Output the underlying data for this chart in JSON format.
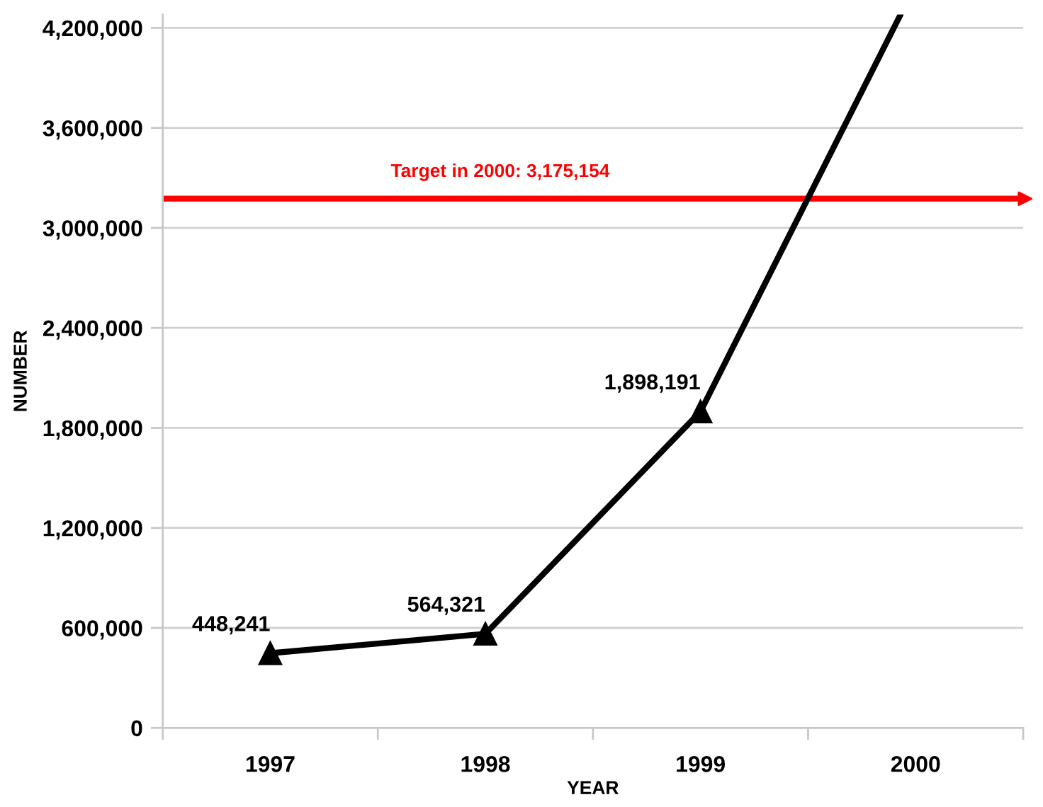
{
  "chart_data": {
    "type": "line",
    "xlabel": "YEAR",
    "ylabel": "NUMBER",
    "xlim": [
      1996.5,
      2000.5
    ],
    "xticks": [
      {
        "value": 1996.5,
        "label": null
      },
      1997,
      {
        "value": 1997.5,
        "label": null
      },
      1998,
      {
        "value": 1998.5,
        "label": null
      },
      1999,
      {
        "value": 1999.5,
        "label": null
      },
      2000,
      {
        "value": 2000.5,
        "label": null
      }
    ],
    "ylim": [
      0,
      4280000
    ],
    "yticks": [
      0,
      {
        "value": 600000,
        "label": "600,000"
      },
      {
        "value": 1200000,
        "label": "1,200,000"
      },
      {
        "value": 1800000,
        "label": "1,800,000"
      },
      {
        "value": 2400000,
        "label": "2,400,000"
      },
      {
        "value": 3000000,
        "label": "3,000,000"
      },
      {
        "value": 3600000,
        "label": "3,600,000"
      },
      {
        "value": 4200000,
        "label": "4,200,000"
      }
    ],
    "grid": "y",
    "line_style": "solid",
    "series": [
      {
        "color": "#000000",
        "marker": "triangle",
        "x": [
          1997,
          1998,
          1999
        ],
        "values": [
          448241,
          564321,
          1898191
        ],
        "value_labels": [
          "448,241",
          "564,321",
          "1,898,191"
        ]
      },
      {
        "color": "#000000",
        "marker": "none",
        "x": [
          1999,
          1999.93
        ],
        "values": [
          1898191,
          4280000
        ]
      }
    ],
    "ref_lines": [
      {
        "axis": "y",
        "value": 3175154,
        "label": "Target in 2000: 3,175,154",
        "color": "#ff0000"
      }
    ]
  }
}
